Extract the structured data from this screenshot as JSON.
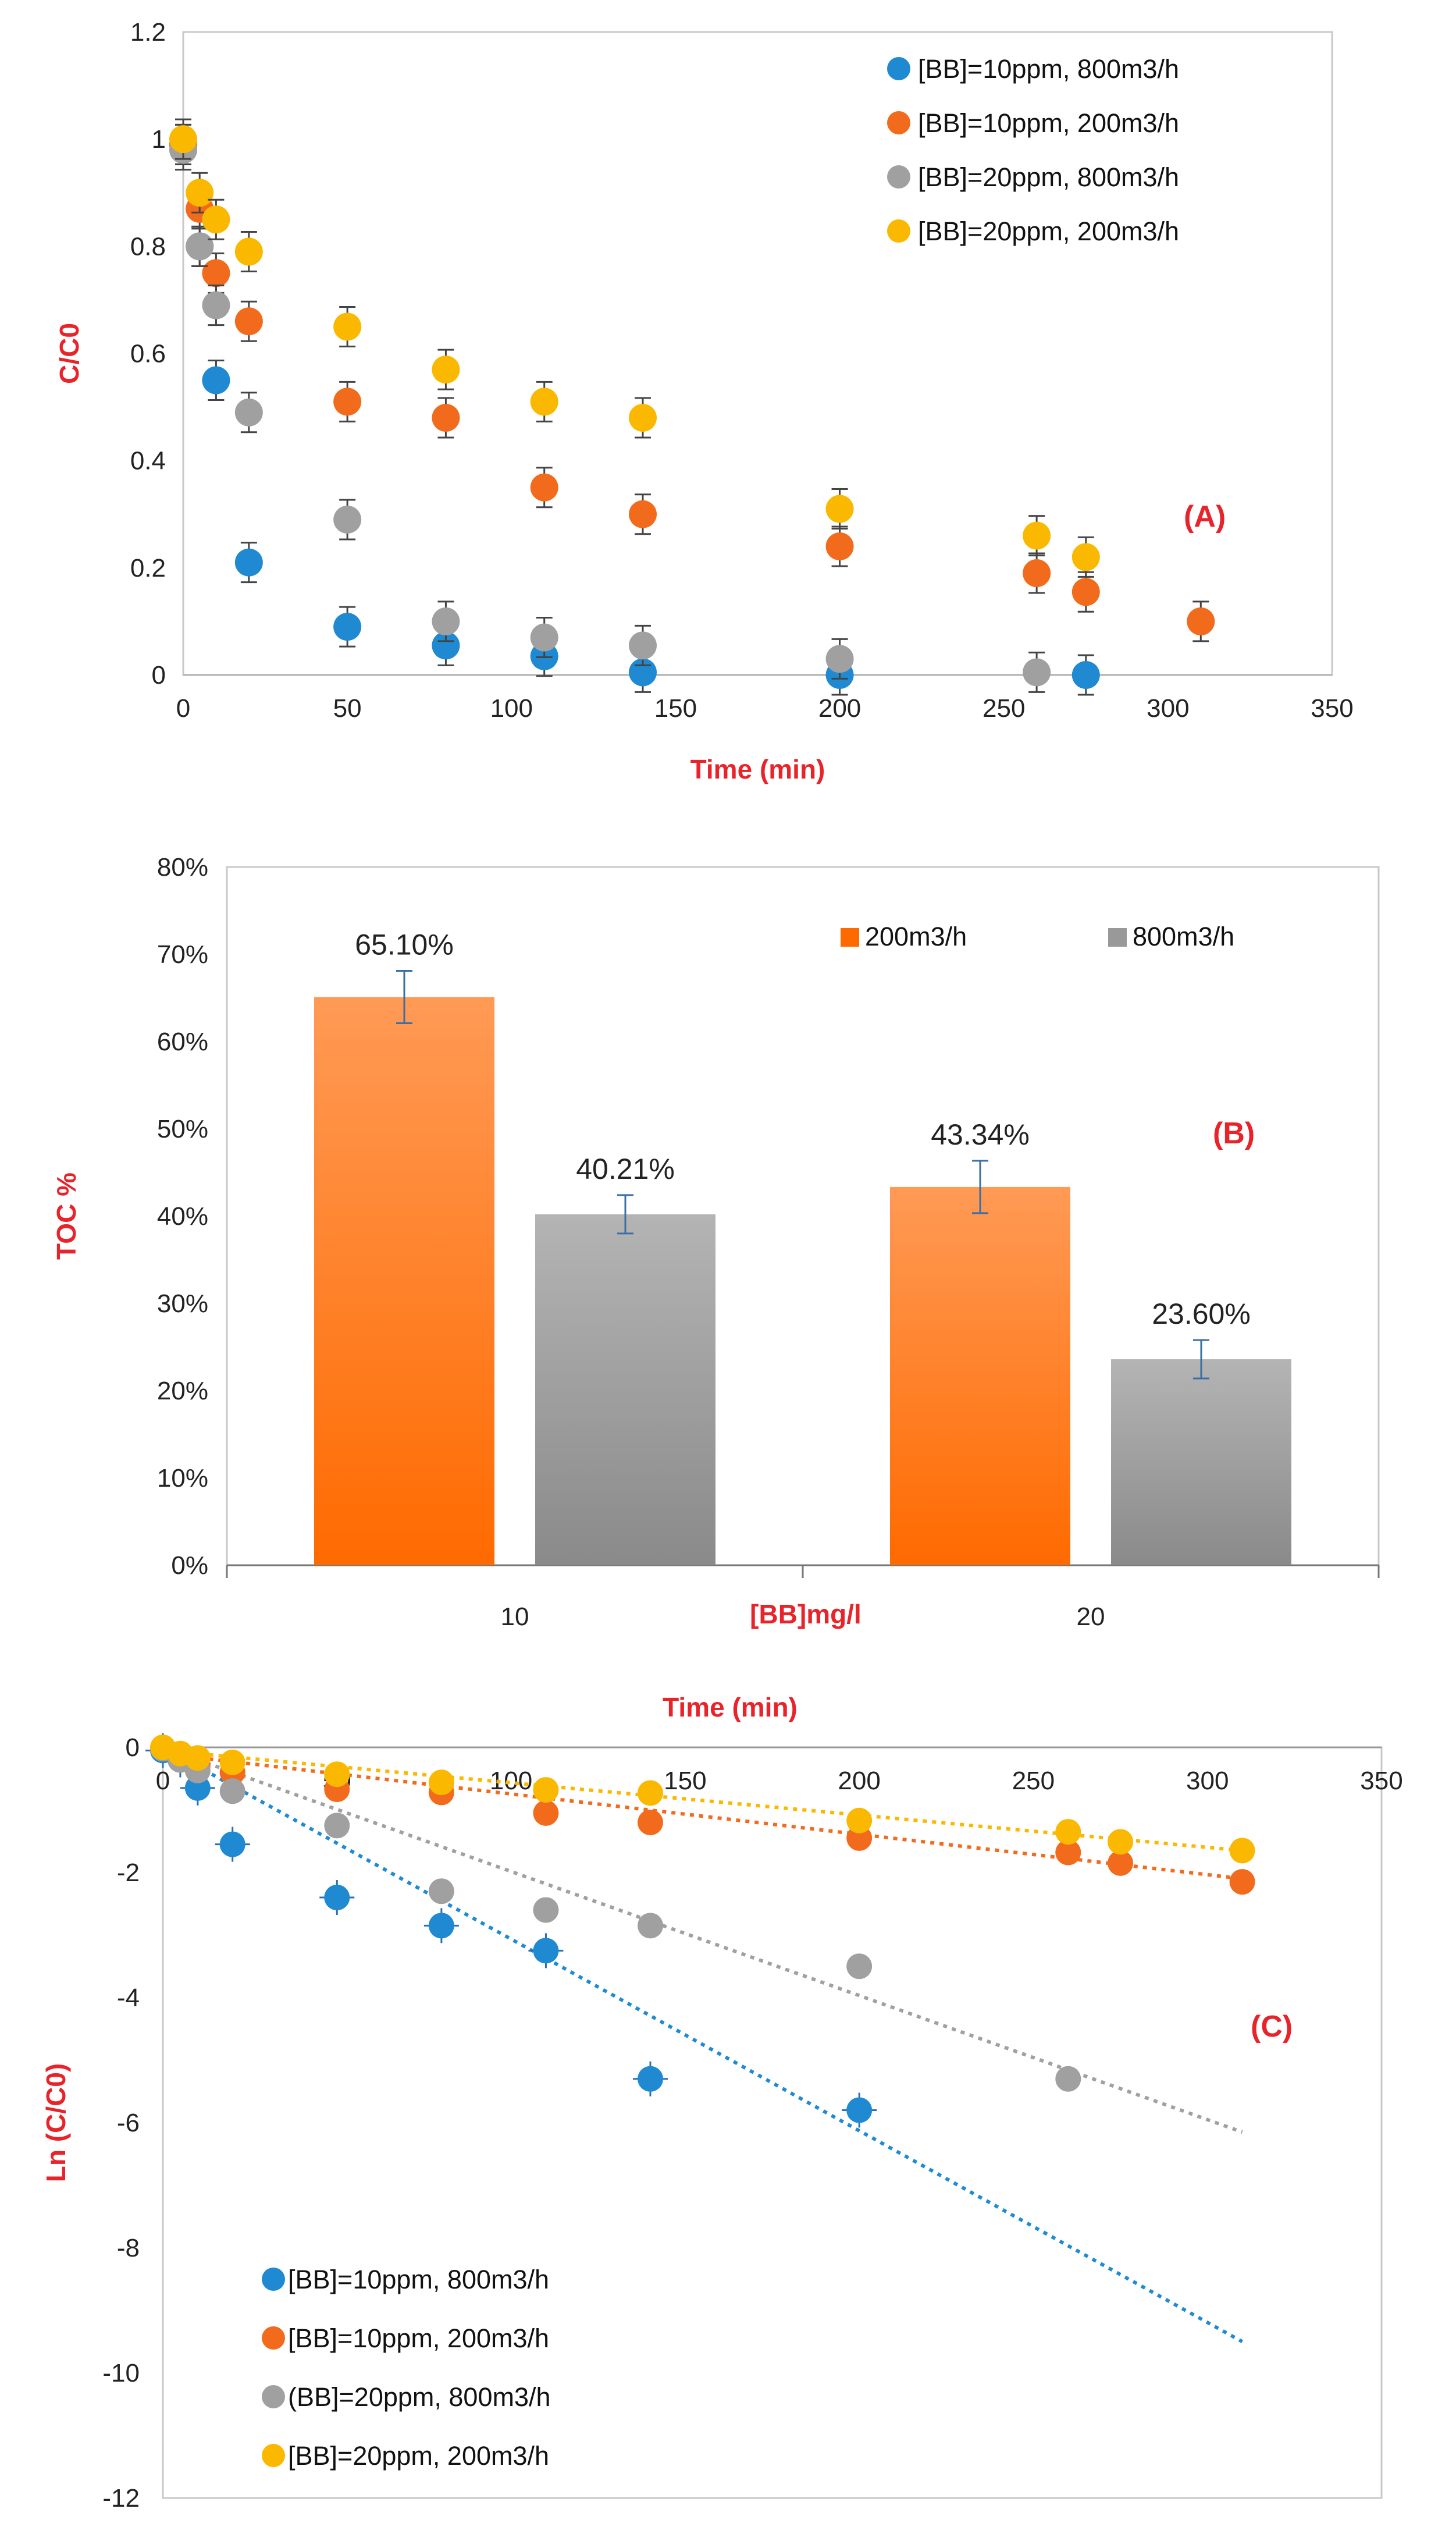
{
  "chart_data": [
    {
      "type": "scatter",
      "panel_label": "(A)",
      "xlabel": "Time (min)",
      "ylabel": "C/C0",
      "xlim": [
        0,
        350
      ],
      "ylim": [
        0,
        1.2
      ],
      "xticks": [
        "0",
        "50",
        "100",
        "150",
        "200",
        "250",
        "300",
        "350"
      ],
      "yticks": [
        "0",
        "0.2",
        "0.4",
        "0.6",
        "0.8",
        "1",
        "1.2"
      ],
      "grid": false,
      "legend": "top-right",
      "series": [
        {
          "name": "[BB]=10ppm, 800m3/h",
          "color": "#1f8ad1",
          "x": [
            0,
            5,
            10,
            20,
            50,
            80,
            110,
            140,
            200,
            275
          ],
          "y": [
            0.99,
            0.8,
            0.55,
            0.21,
            0.09,
            0.055,
            0.035,
            0.005,
            0.0,
            0.0
          ]
        },
        {
          "name": "[BB]=10ppm, 200m3/h",
          "color": "#f26b1d",
          "x": [
            0,
            5,
            10,
            20,
            50,
            80,
            110,
            140,
            200,
            260,
            275,
            310
          ],
          "y": [
            0.99,
            0.87,
            0.75,
            0.66,
            0.51,
            0.48,
            0.35,
            0.3,
            0.24,
            0.19,
            0.155,
            0.1
          ]
        },
        {
          "name": "[BB]=20ppm, 800m3/h",
          "color": "#a0a0a0",
          "x": [
            0,
            5,
            10,
            20,
            50,
            80,
            110,
            140,
            200,
            260
          ],
          "y": [
            0.98,
            0.8,
            0.69,
            0.49,
            0.29,
            0.1,
            0.07,
            0.055,
            0.03,
            0.005
          ]
        },
        {
          "name": "[BB]=20ppm, 200m3/h",
          "color": "#fbb800",
          "x": [
            0,
            5,
            10,
            20,
            50,
            80,
            110,
            140,
            200,
            260,
            275
          ],
          "y": [
            1.0,
            0.9,
            0.85,
            0.79,
            0.65,
            0.57,
            0.51,
            0.48,
            0.31,
            0.26,
            0.22
          ]
        }
      ]
    },
    {
      "type": "bar",
      "panel_label": "(B)",
      "xlabel": "[BB]mg/l",
      "ylabel": "TOC %",
      "categories": [
        "10",
        "20"
      ],
      "ylim": [
        0,
        80
      ],
      "yticks": [
        "0%",
        "10%",
        "20%",
        "30%",
        "40%",
        "50%",
        "60%",
        "70%",
        "80%"
      ],
      "legend": "top-right",
      "series": [
        {
          "name": "200m3/h",
          "color": "#ff6a00",
          "values": [
            65.1,
            43.34
          ],
          "labels": [
            "65.10%",
            "43.34%"
          ]
        },
        {
          "name": "800m3/h",
          "color": "#999999",
          "values": [
            40.21,
            23.6
          ],
          "labels": [
            "40.21%",
            "23.60%"
          ]
        }
      ]
    },
    {
      "type": "scatter",
      "panel_label": "(C)",
      "xlabel": "Time (min)",
      "ylabel": "Ln (C/C0)",
      "xlim": [
        0,
        350
      ],
      "ylim": [
        -12,
        0
      ],
      "xticks": [
        "0",
        "50",
        "100",
        "150",
        "200",
        "250",
        "300",
        "350"
      ],
      "yticks": [
        "0",
        "-2",
        "-4",
        "-6",
        "-8",
        "-10",
        "-12"
      ],
      "grid": false,
      "legend": "bottom-left",
      "series": [
        {
          "name": "[BB]=10ppm, 800m3/h",
          "color": "#1f8ad1",
          "x": [
            0,
            5,
            10,
            20,
            50,
            80,
            110,
            140,
            200
          ],
          "y": [
            -0.05,
            -0.2,
            -0.65,
            -1.55,
            -2.4,
            -2.85,
            -3.25,
            -5.3,
            -5.8
          ],
          "trend": [
            [
              0,
              0
            ],
            [
              310,
              -9.5
            ]
          ]
        },
        {
          "name": "[BB]=10ppm, 200m3/h",
          "color": "#f26b1d",
          "x": [
            0,
            5,
            10,
            20,
            50,
            80,
            110,
            140,
            200,
            260,
            275,
            310
          ],
          "y": [
            -0.02,
            -0.12,
            -0.3,
            -0.4,
            -0.67,
            -0.72,
            -1.05,
            -1.2,
            -1.45,
            -1.68,
            -1.85,
            -2.15
          ],
          "trend": [
            [
              0,
              -0.1
            ],
            [
              310,
              -2.1
            ]
          ]
        },
        {
          "name": "(BB]=20ppm, 800m3/h",
          "color": "#a0a0a0",
          "x": [
            0,
            5,
            10,
            20,
            50,
            80,
            110,
            140,
            200,
            260
          ],
          "y": [
            -0.02,
            -0.2,
            -0.37,
            -0.7,
            -1.25,
            -2.3,
            -2.6,
            -2.85,
            -3.5,
            -5.3
          ],
          "trend": [
            [
              0,
              0
            ],
            [
              310,
              -6.15
            ]
          ]
        },
        {
          "name": "[BB]=20ppm, 200m3/h",
          "color": "#fbb800",
          "x": [
            0,
            5,
            10,
            20,
            50,
            80,
            110,
            140,
            200,
            260,
            275,
            310
          ],
          "y": [
            0,
            -0.1,
            -0.17,
            -0.24,
            -0.43,
            -0.56,
            -0.68,
            -0.73,
            -1.17,
            -1.35,
            -1.51,
            -1.65
          ],
          "trend": [
            [
              0,
              -0.05
            ],
            [
              310,
              -1.65
            ]
          ]
        }
      ]
    }
  ]
}
